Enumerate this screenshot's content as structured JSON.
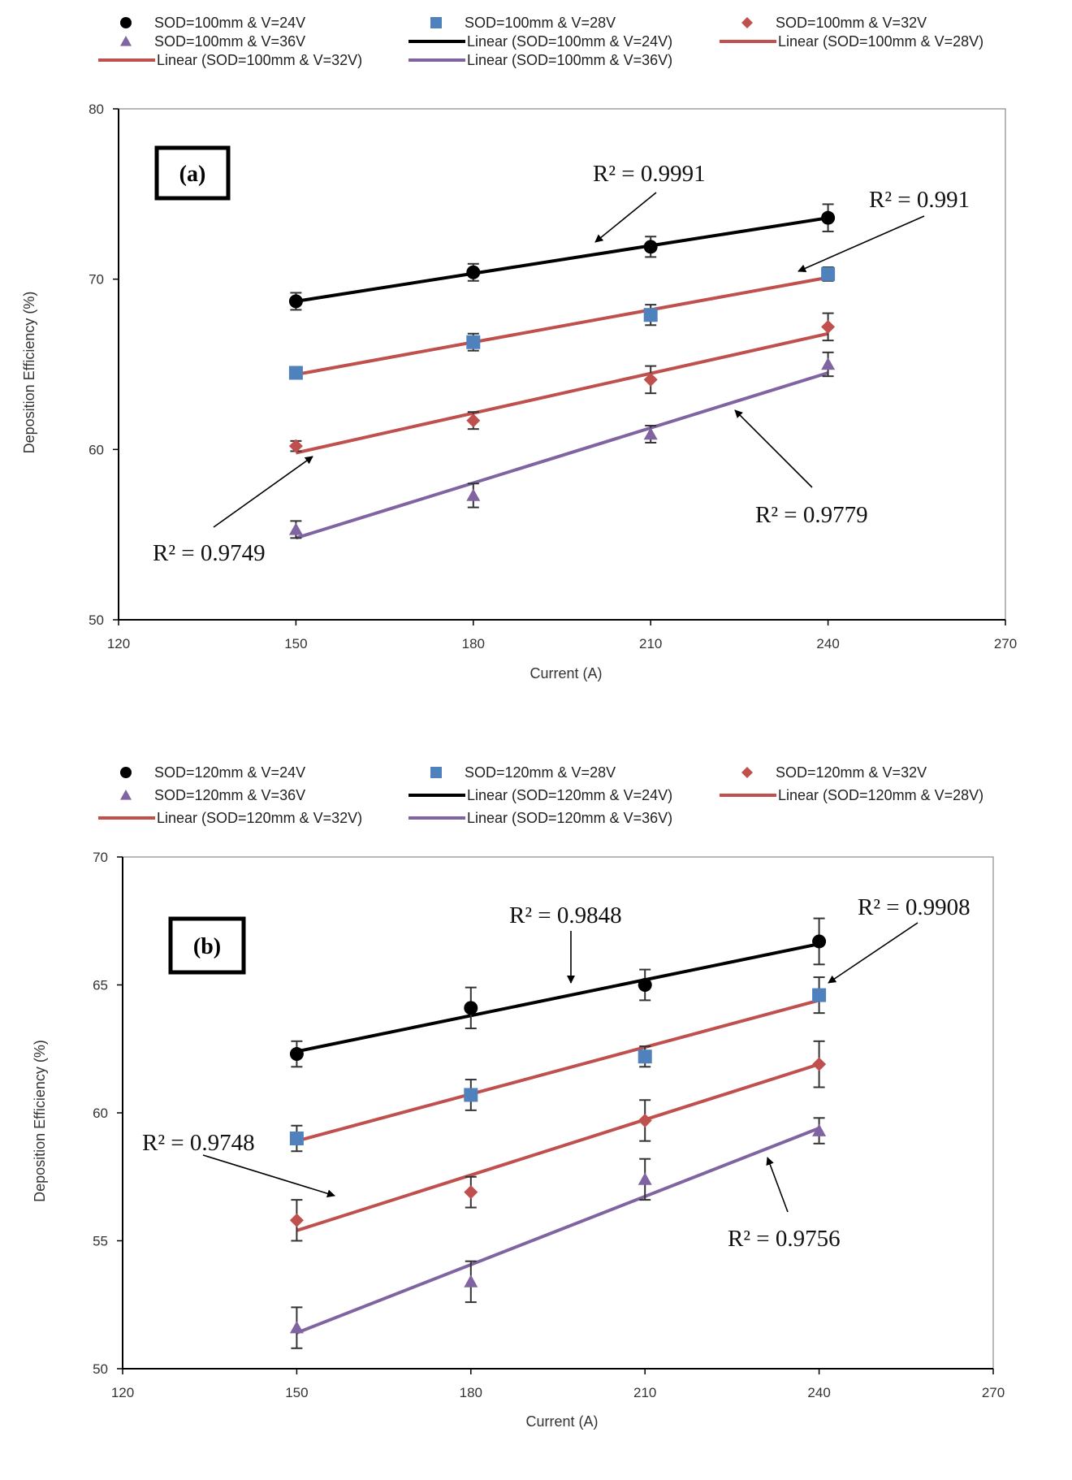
{
  "chart_data": [
    {
      "type": "scatter",
      "panel_label": "(a)",
      "xlabel": "Current (A)",
      "ylabel": "Deposition Efficiency (%)",
      "xlim": [
        120,
        270
      ],
      "ylim": [
        50,
        80
      ],
      "xticks": [
        120,
        150,
        180,
        210,
        240,
        270
      ],
      "yticks": [
        50,
        60,
        70,
        80
      ],
      "grid": false,
      "legend_position": "top",
      "legend": [
        "SOD=100mm & V=24V",
        "SOD=100mm & V=28V",
        "SOD=100mm & V=32V",
        "SOD=100mm & V=36V",
        "Linear (SOD=100mm & V=24V)",
        "Linear (SOD=100mm & V=28V)",
        "Linear (SOD=100mm & V=32V)",
        "Linear (SOD=100mm & V=36V)"
      ],
      "x": [
        150,
        180,
        210,
        240
      ],
      "series": [
        {
          "name": "SOD=100mm & V=24V",
          "marker": "circle",
          "color": "#000000",
          "values": [
            68.7,
            70.4,
            71.9,
            73.6
          ],
          "errors": [
            0.5,
            0.5,
            0.6,
            0.8
          ],
          "fit": [
            68.7,
            73.6
          ],
          "fit_color": "#000000"
        },
        {
          "name": "SOD=100mm & V=28V",
          "marker": "square",
          "color": "#4f81bd",
          "values": [
            64.5,
            66.3,
            67.9,
            70.3
          ],
          "errors": [
            0.3,
            0.5,
            0.6,
            0.4
          ],
          "fit": [
            64.4,
            70.1
          ],
          "fit_color": "#c0504d"
        },
        {
          "name": "SOD=100mm & V=32V",
          "marker": "diamond",
          "color": "#c0504d",
          "values": [
            60.2,
            61.7,
            64.1,
            67.2
          ],
          "errors": [
            0.3,
            0.5,
            0.8,
            0.8
          ],
          "fit": [
            59.8,
            66.8
          ],
          "fit_color": "#c0504d"
        },
        {
          "name": "SOD=100mm & V=36V",
          "marker": "triangle",
          "color": "#8064a2",
          "values": [
            55.3,
            57.3,
            60.9,
            65.0
          ],
          "errors": [
            0.5,
            0.7,
            0.5,
            0.7
          ],
          "fit": [
            54.8,
            64.5
          ],
          "fit_color": "#8064a2"
        }
      ],
      "annotations": [
        {
          "text": "R² = 0.9991"
        },
        {
          "text": "R² = 0.991"
        },
        {
          "text": "R² = 0.9749"
        },
        {
          "text": "R² = 0.9779"
        }
      ]
    },
    {
      "type": "scatter",
      "panel_label": "(b)",
      "xlabel": "Current (A)",
      "ylabel": "Deposition Efficiency (%)",
      "xlim": [
        120,
        270
      ],
      "ylim": [
        50,
        70
      ],
      "xticks": [
        120,
        150,
        180,
        210,
        240,
        270
      ],
      "yticks": [
        50,
        55,
        60,
        65,
        70
      ],
      "grid": false,
      "legend_position": "top",
      "legend": [
        "SOD=120mm & V=24V",
        "SOD=120mm & V=28V",
        "SOD=120mm & V=32V",
        "SOD=120mm & V=36V",
        "Linear (SOD=120mm & V=24V)",
        "Linear (SOD=120mm & V=28V)",
        "Linear (SOD=120mm & V=32V)",
        "Linear (SOD=120mm & V=36V)"
      ],
      "x": [
        150,
        180,
        210,
        240
      ],
      "series": [
        {
          "name": "SOD=120mm & V=24V",
          "marker": "circle",
          "color": "#000000",
          "values": [
            62.3,
            64.1,
            65.0,
            66.7
          ],
          "errors": [
            0.5,
            0.8,
            0.6,
            0.9
          ],
          "fit": [
            62.4,
            66.6
          ],
          "fit_color": "#000000"
        },
        {
          "name": "SOD=120mm & V=28V",
          "marker": "square",
          "color": "#4f81bd",
          "values": [
            59.0,
            60.7,
            62.2,
            64.6
          ],
          "errors": [
            0.5,
            0.6,
            0.4,
            0.7
          ],
          "fit": [
            58.9,
            64.4
          ],
          "fit_color": "#c0504d"
        },
        {
          "name": "SOD=120mm & V=32V",
          "marker": "diamond",
          "color": "#c0504d",
          "values": [
            55.8,
            56.9,
            59.7,
            61.9
          ],
          "errors": [
            0.8,
            0.6,
            0.8,
            0.9
          ],
          "fit": [
            55.4,
            61.9
          ],
          "fit_color": "#c0504d"
        },
        {
          "name": "SOD=120mm & V=36V",
          "marker": "triangle",
          "color": "#8064a2",
          "values": [
            51.6,
            53.4,
            57.4,
            59.3
          ],
          "errors": [
            0.8,
            0.8,
            0.8,
            0.5
          ],
          "fit": [
            51.4,
            59.4
          ],
          "fit_color": "#8064a2"
        }
      ],
      "annotations": [
        {
          "text": "R² = 0.9848"
        },
        {
          "text": "R² = 0.9908"
        },
        {
          "text": "R² = 0.9748"
        },
        {
          "text": "R² = 0.9756"
        }
      ]
    }
  ]
}
